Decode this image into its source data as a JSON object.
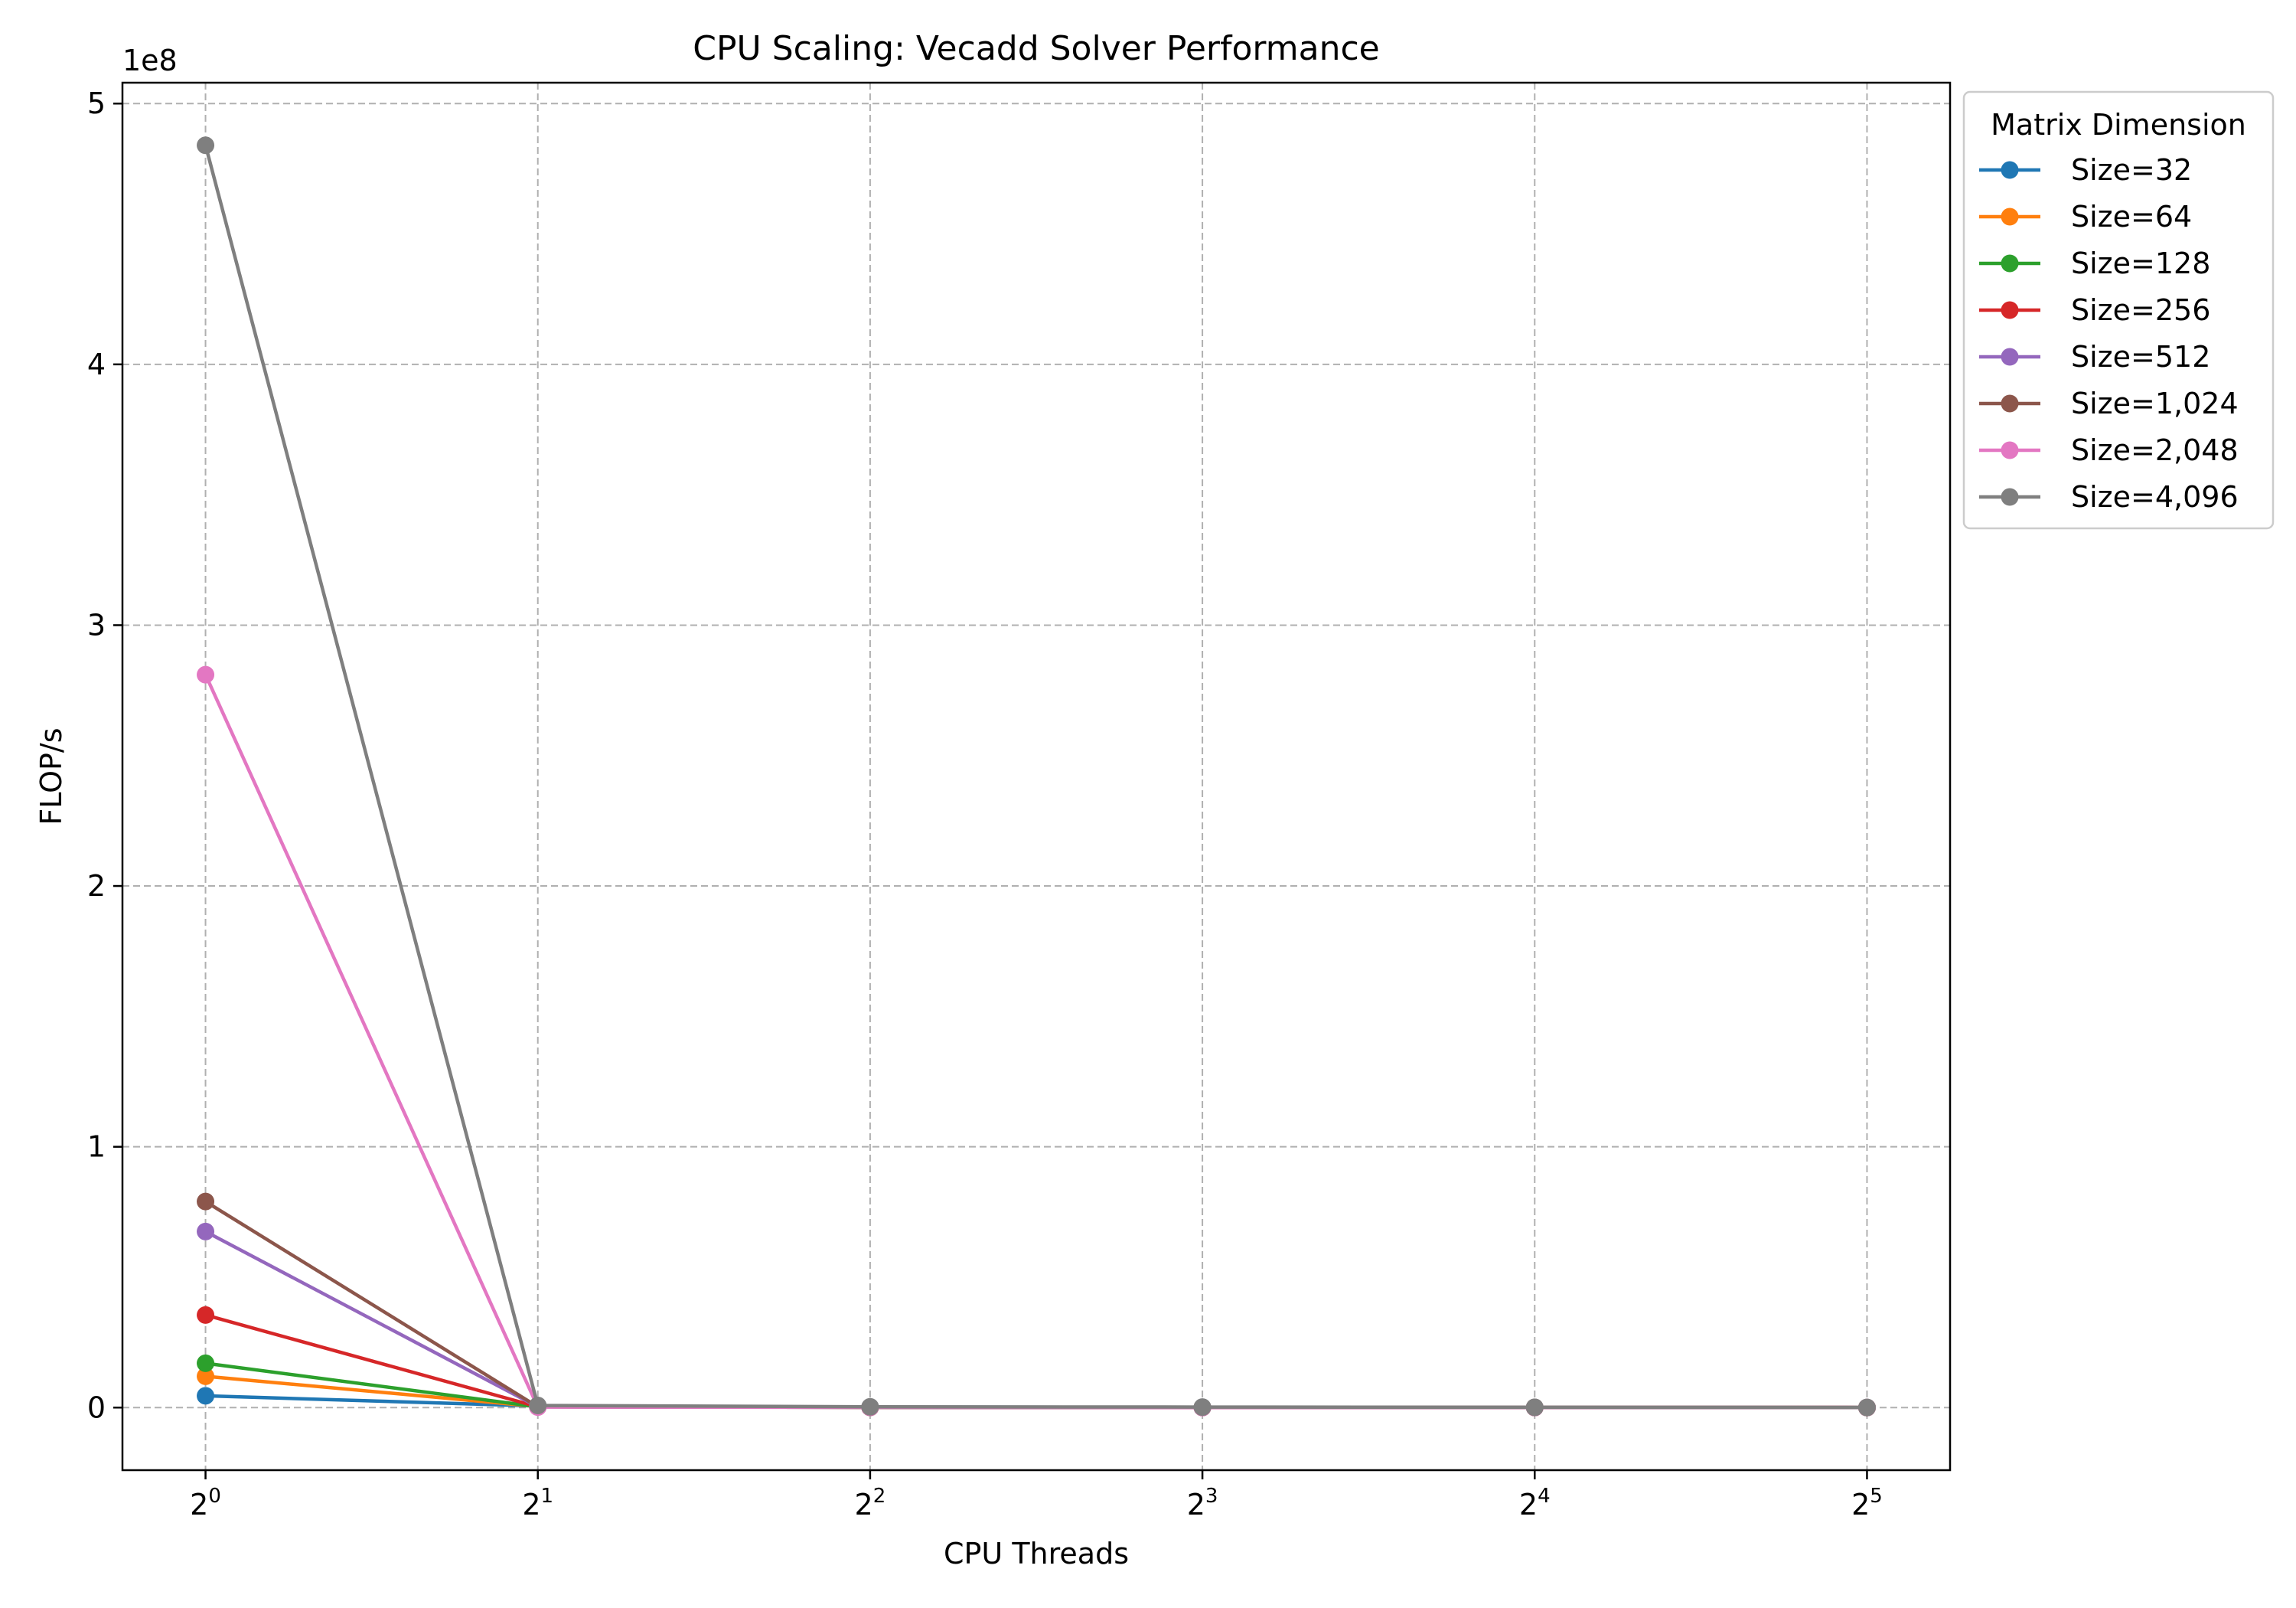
{
  "chart_data": {
    "type": "line",
    "title": "CPU Scaling: Vecadd Solver Performance",
    "xlabel": "CPU Threads",
    "ylabel": "FLOP/s",
    "y_offset_label": "1e8",
    "x_scale": "log2",
    "x": [
      1,
      2,
      4,
      8,
      16,
      32
    ],
    "x_tick_labels": [
      {
        "base": "2",
        "exp": "0"
      },
      {
        "base": "2",
        "exp": "1"
      },
      {
        "base": "2",
        "exp": "2"
      },
      {
        "base": "2",
        "exp": "3"
      },
      {
        "base": "2",
        "exp": "4"
      },
      {
        "base": "2",
        "exp": "5"
      }
    ],
    "y_ticks": [
      0,
      1,
      2,
      3,
      4,
      5
    ],
    "y_multiplier": 100000000,
    "ylim": [
      -0.24,
      5.08
    ],
    "grid": true,
    "legend_title": "Matrix Dimension",
    "legend_position": "outside-top-right",
    "series": [
      {
        "name": "Size=32",
        "color": "#1f77b4",
        "values": [
          0.045,
          0.006,
          0.002,
          0.001,
          0.0005,
          0.0003
        ]
      },
      {
        "name": "Size=64",
        "color": "#ff7f0e",
        "values": [
          0.12,
          0.004,
          0.001,
          0.0008,
          0.0004,
          0.0002
        ]
      },
      {
        "name": "Size=128",
        "color": "#2ca02c",
        "values": [
          0.17,
          0.003,
          0.001,
          0.0006,
          0.0003,
          0.0002
        ]
      },
      {
        "name": "Size=256",
        "color": "#d62728",
        "values": [
          0.355,
          0.003,
          0.001,
          0.0005,
          0.0003,
          0.0002
        ]
      },
      {
        "name": "Size=512",
        "color": "#9467bd",
        "values": [
          0.675,
          0.003,
          0.001,
          0.0005,
          0.0003,
          0.0002
        ]
      },
      {
        "name": "Size=1,024",
        "color": "#8c564b",
        "values": [
          0.79,
          0.003,
          0.001,
          0.0005,
          0.0003,
          0.0002
        ]
      },
      {
        "name": "Size=2,048",
        "color": "#e377c2",
        "values": [
          2.81,
          0.002,
          0.001,
          0.0005,
          0.0003,
          0.0002
        ]
      },
      {
        "name": "Size=4,096",
        "color": "#7f7f7f",
        "values": [
          4.84,
          0.008,
          0.003,
          0.002,
          0.001,
          0.0005
        ]
      }
    ]
  }
}
